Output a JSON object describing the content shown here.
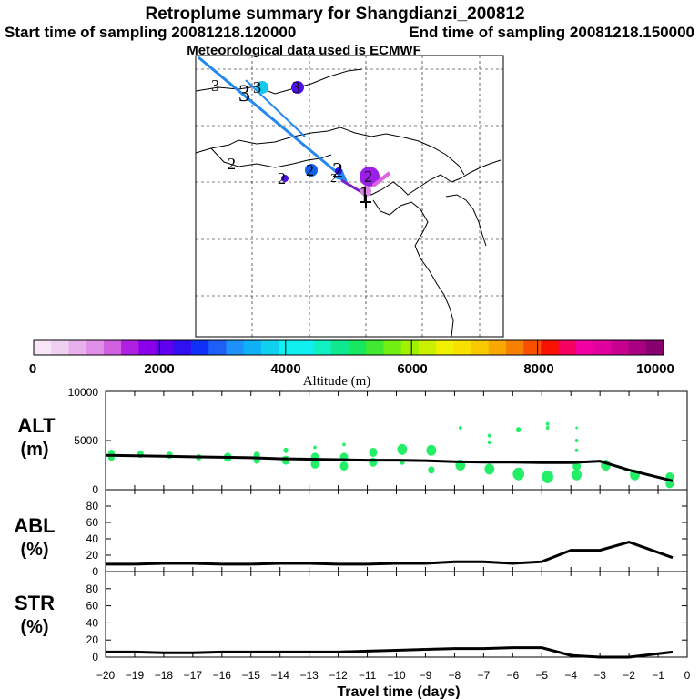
{
  "header": {
    "title": "Retroplume summary for Shangdianzi_200812",
    "start_time": "Start time of sampling 20081218.120000",
    "end_time": "End time of sampling 20081218.150000",
    "met": "Meteorological data used is ECMWF"
  },
  "map": {
    "altitude_labels": [
      "3",
      "3",
      "3",
      "3",
      "2",
      "2",
      "2",
      "2",
      "2",
      "2",
      "1"
    ],
    "trajectory_color": "#2288ee",
    "arrow_color": "#7722cc"
  },
  "colorbar": {
    "label": "Altitude (m)",
    "ticks": [
      "0",
      "2000",
      "4000",
      "6000",
      "8000",
      "10000"
    ],
    "colors": [
      "#f8e6f8",
      "#f0d0f0",
      "#e8b0ec",
      "#e090e8",
      "#d060e0",
      "#b020e0",
      "#8a00e8",
      "#6000f0",
      "#3010f0",
      "#1030f8",
      "#1c60f8",
      "#1e90f8",
      "#10b0f8",
      "#10d0f0",
      "#10f0f0",
      "#10f0f0",
      "#10f0c0",
      "#10e890",
      "#18e860",
      "#40e830",
      "#70f010",
      "#a0f000",
      "#c8f000",
      "#f0f000",
      "#f8e000",
      "#f8c800",
      "#f8a800",
      "#f88000",
      "#f85000",
      "#f81000",
      "#f80060",
      "#f000a0",
      "#e000a0",
      "#c80090",
      "#a80080",
      "#880070"
    ]
  },
  "chart_data": [
    {
      "type": "line",
      "name": "ALT",
      "ylabel": "ALT",
      "yunit": "(m)",
      "ylim": [
        0,
        10000
      ],
      "yticks": [
        0,
        5000,
        10000
      ],
      "x": [
        -20,
        -19,
        -18,
        -17,
        -16,
        -15,
        -14,
        -13,
        -12,
        -11,
        -10,
        -9,
        -8,
        -7,
        -6,
        -5,
        -4,
        -3,
        -2,
        -0.5
      ],
      "values": [
        3500,
        3450,
        3400,
        3350,
        3300,
        3250,
        3150,
        3100,
        3050,
        3000,
        3000,
        2950,
        2850,
        2800,
        2800,
        2750,
        2750,
        2900,
        2000,
        900
      ],
      "scatter": [
        {
          "x": -19.8,
          "y": 3700,
          "r": 4
        },
        {
          "x": -19.8,
          "y": 3300,
          "r": 4
        },
        {
          "x": -18.8,
          "y": 3600,
          "r": 4
        },
        {
          "x": -17.8,
          "y": 3500,
          "r": 4
        },
        {
          "x": -16.8,
          "y": 3300,
          "r": 3.5
        },
        {
          "x": -15.8,
          "y": 3300,
          "r": 5
        },
        {
          "x": -14.8,
          "y": 3500,
          "r": 4
        },
        {
          "x": -14.8,
          "y": 3000,
          "r": 4
        },
        {
          "x": -13.8,
          "y": 4000,
          "r": 3
        },
        {
          "x": -13.8,
          "y": 3000,
          "r": 5
        },
        {
          "x": -12.8,
          "y": 4300,
          "r": 2
        },
        {
          "x": -12.8,
          "y": 3300,
          "r": 5
        },
        {
          "x": -12.8,
          "y": 2600,
          "r": 5
        },
        {
          "x": -11.8,
          "y": 4600,
          "r": 2
        },
        {
          "x": -11.8,
          "y": 3300,
          "r": 5
        },
        {
          "x": -11.8,
          "y": 2400,
          "r": 5
        },
        {
          "x": -10.8,
          "y": 3800,
          "r": 5
        },
        {
          "x": -10.8,
          "y": 2800,
          "r": 5
        },
        {
          "x": -9.8,
          "y": 4100,
          "r": 6
        },
        {
          "x": -9.8,
          "y": 2800,
          "r": 3
        },
        {
          "x": -8.8,
          "y": 4000,
          "r": 6
        },
        {
          "x": -8.8,
          "y": 2000,
          "r": 4
        },
        {
          "x": -7.8,
          "y": 6300,
          "r": 2
        },
        {
          "x": -7.8,
          "y": 2500,
          "r": 6
        },
        {
          "x": -6.8,
          "y": 5500,
          "r": 2
        },
        {
          "x": -6.8,
          "y": 4800,
          "r": 2
        },
        {
          "x": -6.8,
          "y": 2100,
          "r": 6
        },
        {
          "x": -5.8,
          "y": 6100,
          "r": 3
        },
        {
          "x": -5.8,
          "y": 1600,
          "r": 7
        },
        {
          "x": -4.8,
          "y": 6700,
          "r": 2
        },
        {
          "x": -4.8,
          "y": 6300,
          "r": 2
        },
        {
          "x": -4.8,
          "y": 1300,
          "r": 7
        },
        {
          "x": -3.8,
          "y": 6300,
          "r": 1.5
        },
        {
          "x": -3.8,
          "y": 5000,
          "r": 2
        },
        {
          "x": -3.8,
          "y": 4000,
          "r": 2
        },
        {
          "x": -3.8,
          "y": 2400,
          "r": 5
        },
        {
          "x": -3.8,
          "y": 1500,
          "r": 6
        },
        {
          "x": -2.8,
          "y": 2500,
          "r": 6
        },
        {
          "x": -1.8,
          "y": 1500,
          "r": 6
        },
        {
          "x": -0.6,
          "y": 1300,
          "r": 5
        },
        {
          "x": -0.6,
          "y": 600,
          "r": 5
        }
      ],
      "scatter_color": "#22ee66"
    },
    {
      "type": "line",
      "name": "ABL",
      "ylabel": "ABL",
      "yunit": "(%)",
      "ylim": [
        0,
        100
      ],
      "yticks": [
        0,
        20,
        40,
        60,
        80
      ],
      "x": [
        -20,
        -19,
        -18,
        -17,
        -16,
        -15,
        -14,
        -13,
        -12,
        -11,
        -10,
        -9,
        -8,
        -7,
        -6,
        -5,
        -4,
        -3,
        -2,
        -0.5
      ],
      "values": [
        9,
        9,
        10,
        10,
        9,
        9,
        10,
        10,
        9,
        9,
        10,
        10,
        12,
        12,
        10,
        12,
        26,
        26,
        36,
        17
      ]
    },
    {
      "type": "line",
      "name": "STR",
      "ylabel": "STR",
      "yunit": "(%)",
      "ylim": [
        0,
        100
      ],
      "yticks": [
        0,
        20,
        40,
        60,
        80
      ],
      "x": [
        -20,
        -19,
        -18,
        -17,
        -16,
        -15,
        -14,
        -13,
        -12,
        -11,
        -10,
        -9,
        -8,
        -7,
        -6,
        -5,
        -4,
        -3,
        -2,
        -0.5
      ],
      "values": [
        6,
        6,
        5,
        5,
        6,
        6,
        6,
        6,
        6,
        7,
        8,
        9,
        10,
        10,
        11,
        11,
        2,
        0,
        0,
        6
      ]
    }
  ],
  "xaxis": {
    "label": "Travel time (days)",
    "ticks": [
      "−20",
      "−19",
      "−18",
      "−17",
      "−16",
      "−15",
      "−14",
      "−13",
      "−12",
      "−11",
      "−10",
      "−9",
      "−8",
      "−7",
      "−6",
      "−5",
      "−4",
      "−3",
      "−2",
      "−1",
      "0"
    ]
  }
}
